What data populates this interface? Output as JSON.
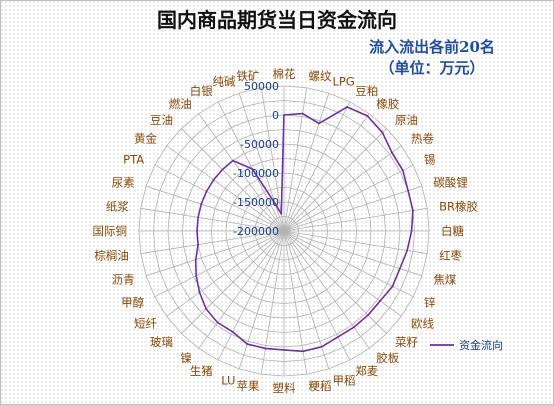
{
  "chart_data": {
    "type": "radar",
    "title": "国内商品期货当日资金流向",
    "subtitle_lines": [
      "流入流出各前20名",
      "（单位：万元）"
    ],
    "legend_position": "right",
    "series": [
      {
        "name": "资金流向",
        "color": "#7030a0",
        "values": [
          0,
          5000,
          -5000,
          40000,
          45000,
          40000,
          30000,
          30000,
          25000,
          25000,
          20000,
          15000,
          10000,
          10000,
          5000,
          5000,
          5000,
          5000,
          10000,
          10000,
          5000,
          5000,
          5000,
          -5000,
          -5000,
          -10000,
          -20000,
          -30000,
          -40000,
          -50000,
          -50000,
          -50000,
          -50000,
          -50000,
          -50000,
          -50000,
          -50000,
          -80000,
          -150000,
          -170000
        ]
      }
    ],
    "categories": [
      "棉花",
      "螺纹",
      "LPG",
      "豆粕",
      "橡胶",
      "原油",
      "热卷",
      "锡",
      "碳酸锂",
      "BR橡胶",
      "白糖",
      "红枣",
      "焦煤",
      "锌",
      "欧线",
      "菜籽",
      "胶板",
      "郑麦",
      "甲稻",
      "粳稻",
      "塑料",
      "苹果",
      "LU",
      "生猪",
      "镍",
      "玻璃",
      "短纤",
      "甲醇",
      "沥青",
      "棕榈油",
      "国际铜",
      "纸浆",
      "尿素",
      "PTA",
      "黄金",
      "豆油",
      "燃油",
      "白银",
      "纯碱",
      "铁矿"
    ],
    "radial_axis": {
      "min": -200000,
      "max": 50000,
      "ticks": [
        -200000,
        -150000,
        -100000,
        -50000,
        0,
        50000
      ],
      "tick_labels": [
        "-200000",
        "-150000",
        "-100000",
        "-50000",
        "0",
        "50000"
      ]
    },
    "grid": true
  }
}
